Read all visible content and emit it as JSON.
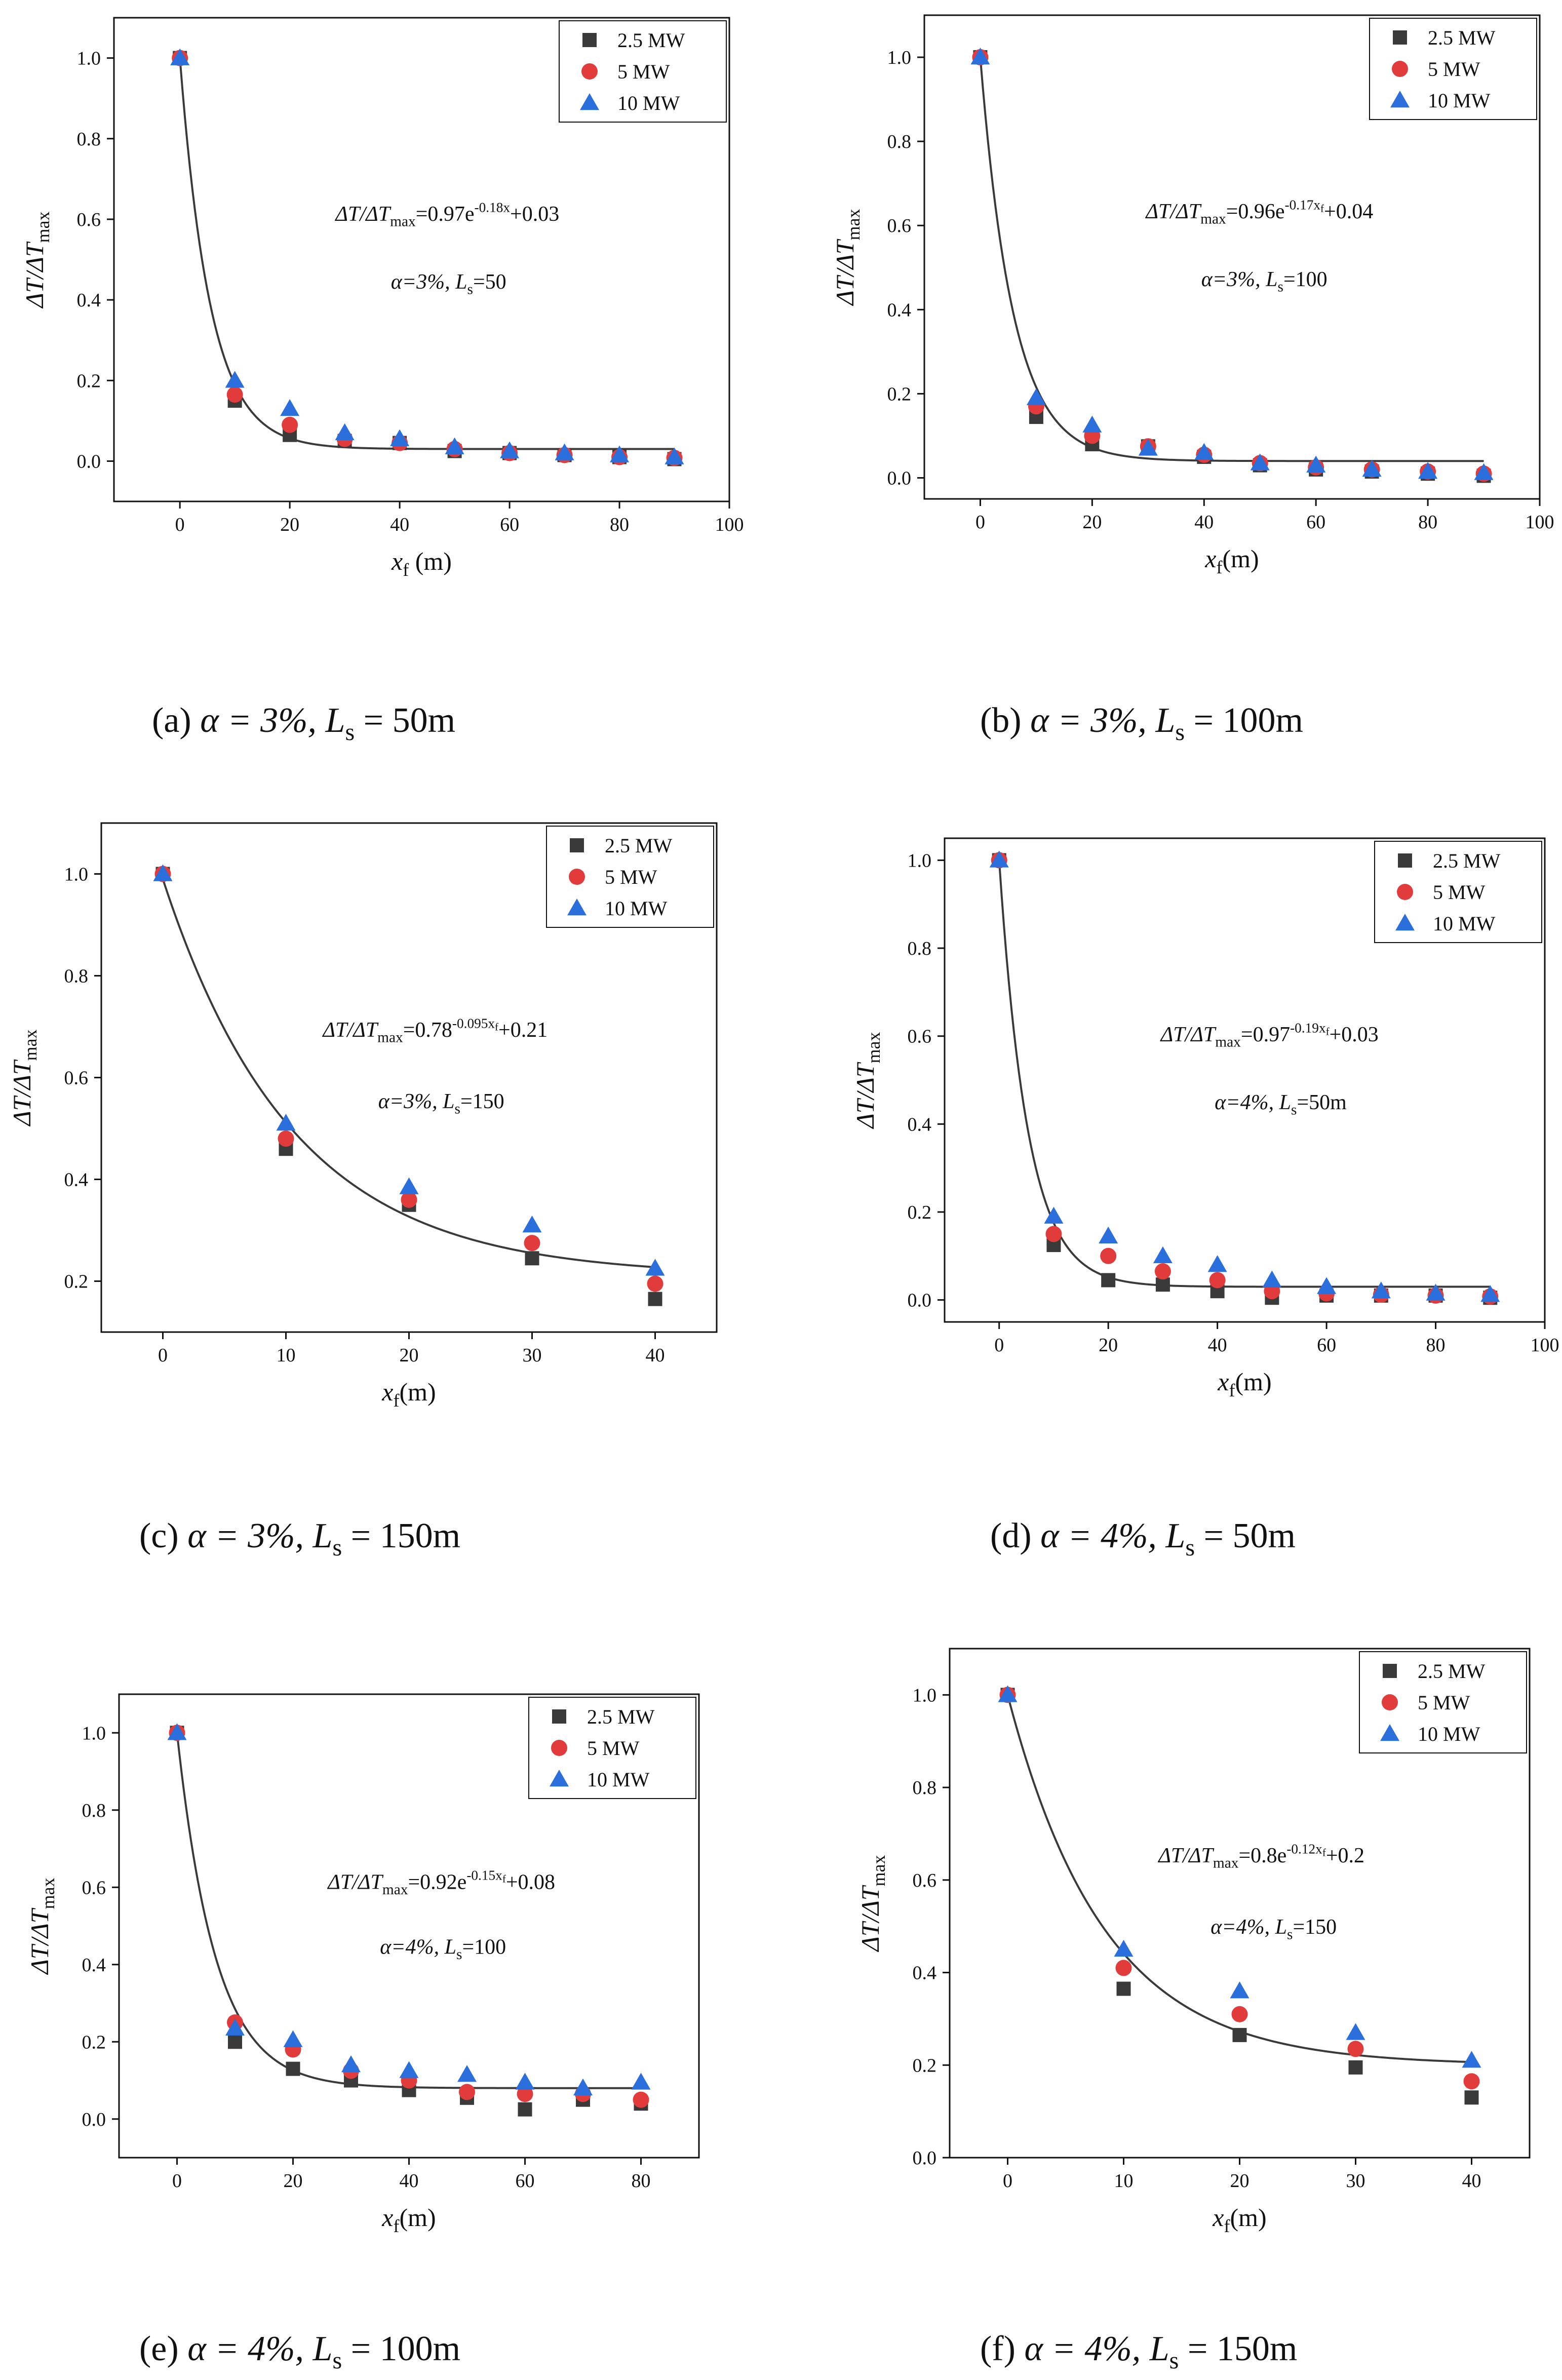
{
  "legend_labels": [
    "2.5 MW",
    "5 MW",
    "10 MW"
  ],
  "series_colors": {
    "2.5 MW": "#3a3a3a",
    "5 MW": "#e23b3b",
    "10 MW": "#2a6fdb"
  },
  "series_markers": {
    "2.5 MW": "square",
    "5 MW": "circle",
    "10 MW": "triangle"
  },
  "chart_data": [
    {
      "id": "a",
      "type": "scatter",
      "caption_prefix": "(a)",
      "caption_expr": "α = 3%, L",
      "caption_sub": "s",
      "caption_tail": " = 50m",
      "ylabel": "ΔT/ΔT",
      "ylabel_sub": "max",
      "xlabel": "x",
      "xlabel_sub": "f",
      "xlabel_tail": " (m)",
      "xlim": [
        -12,
        100
      ],
      "ylim": [
        -0.1,
        1.1
      ],
      "xticks": [
        0,
        20,
        40,
        60,
        80,
        100
      ],
      "yticks": [
        0.0,
        0.2,
        0.4,
        0.6,
        0.8,
        1.0
      ],
      "ytick_decimals": 1,
      "equation_text": "ΔT/ΔT_max=0.97e^(-0.18x)+0.03",
      "params_text": "α=3%, L_s=50",
      "fit": {
        "a": 0.97,
        "b": 0.18,
        "c": 0.03,
        "x_end": 90
      },
      "x": [
        0,
        10,
        20,
        30,
        40,
        50,
        60,
        70,
        80,
        90
      ],
      "series": [
        {
          "name": "2.5 MW",
          "values": [
            1.0,
            0.15,
            0.065,
            0.05,
            0.045,
            0.025,
            0.02,
            0.015,
            0.01,
            0.005
          ]
        },
        {
          "name": "5 MW",
          "values": [
            1.0,
            0.165,
            0.09,
            0.055,
            0.045,
            0.03,
            0.02,
            0.015,
            0.01,
            0.008
          ]
        },
        {
          "name": "10 MW",
          "values": [
            1.0,
            0.2,
            0.13,
            0.07,
            0.055,
            0.035,
            0.025,
            0.02,
            0.015,
            0.01
          ]
        }
      ]
    },
    {
      "id": "b",
      "type": "scatter",
      "caption_prefix": "(b)",
      "caption_expr": "α = 3%, L",
      "caption_sub": "s",
      "caption_tail": " = 100m",
      "ylabel": "ΔT/ΔT",
      "ylabel_sub": "max",
      "xlabel": "x",
      "xlabel_sub": "f",
      "xlabel_tail": "(m)",
      "xlim": [
        -10,
        100
      ],
      "ylim": [
        -0.05,
        1.1
      ],
      "xticks": [
        0,
        20,
        40,
        60,
        80,
        100
      ],
      "yticks": [
        0.0,
        0.2,
        0.4,
        0.6,
        0.8,
        1.0
      ],
      "ytick_decimals": 1,
      "equation_text": "ΔT/ΔT_max=0.96e^(-0.17x_f)+0.04",
      "params_text": "α=3%, L_s=100",
      "fit": {
        "a": 0.96,
        "b": 0.17,
        "c": 0.04,
        "x_end": 90
      },
      "x": [
        0,
        10,
        20,
        30,
        40,
        50,
        60,
        70,
        80,
        90
      ],
      "series": [
        {
          "name": "2.5 MW",
          "values": [
            1.0,
            0.145,
            0.08,
            0.075,
            0.05,
            0.03,
            0.02,
            0.015,
            0.01,
            0.005
          ]
        },
        {
          "name": "5 MW",
          "values": [
            1.0,
            0.17,
            0.1,
            0.075,
            0.055,
            0.035,
            0.025,
            0.02,
            0.015,
            0.01
          ]
        },
        {
          "name": "10 MW",
          "values": [
            1.0,
            0.19,
            0.125,
            0.07,
            0.06,
            0.035,
            0.03,
            0.02,
            0.015,
            0.012
          ]
        }
      ]
    },
    {
      "id": "c",
      "type": "scatter",
      "caption_prefix": "(c)",
      "caption_expr": "α = 3%, L",
      "caption_sub": "s",
      "caption_tail": " = 150m",
      "ylabel": "ΔT/ΔT",
      "ylabel_sub": "max",
      "xlabel": "x",
      "xlabel_sub": "f",
      "xlabel_tail": "(m)",
      "xlim": [
        -5,
        45
      ],
      "ylim": [
        0.1,
        1.1
      ],
      "xticks": [
        0,
        10,
        20,
        30,
        40
      ],
      "yticks": [
        0.2,
        0.4,
        0.6,
        0.8,
        1.0
      ],
      "ytick_decimals": 1,
      "equation_text": "ΔT/ΔT_max=0.78^(-0.095x_f)+0.21",
      "params_text": "α=3%, L_s=150",
      "fit": {
        "a": 0.78,
        "b": 0.095,
        "c": 0.21,
        "x_end": 40
      },
      "x": [
        0,
        10,
        20,
        30,
        40
      ],
      "series": [
        {
          "name": "2.5 MW",
          "values": [
            1.0,
            0.46,
            0.35,
            0.245,
            0.165
          ]
        },
        {
          "name": "5 MW",
          "values": [
            1.0,
            0.48,
            0.36,
            0.275,
            0.195
          ]
        },
        {
          "name": "10 MW",
          "values": [
            1.0,
            0.51,
            0.385,
            0.31,
            0.225
          ]
        }
      ]
    },
    {
      "id": "d",
      "type": "scatter",
      "caption_prefix": "(d)",
      "caption_expr": "α = 4%, L",
      "caption_sub": "s",
      "caption_tail": " = 50m",
      "ylabel": "ΔT/ΔT",
      "ylabel_sub": "max",
      "xlabel": "x",
      "xlabel_sub": "f",
      "xlabel_tail": "(m)",
      "xlim": [
        -10,
        100
      ],
      "ylim": [
        -0.05,
        1.05
      ],
      "xticks": [
        0,
        20,
        40,
        60,
        80,
        100
      ],
      "yticks": [
        0.0,
        0.2,
        0.4,
        0.6,
        0.8,
        1.0
      ],
      "ytick_decimals": 1,
      "equation_text": "ΔT/ΔT_max=0.97^(-0.19x_f)+0.03",
      "params_text": "α=4%, L_s=50m",
      "fit": {
        "a": 0.97,
        "b": 0.19,
        "c": 0.03,
        "x_end": 90
      },
      "x": [
        0,
        10,
        20,
        30,
        40,
        50,
        60,
        70,
        80,
        90
      ],
      "series": [
        {
          "name": "2.5 MW",
          "values": [
            1.0,
            0.125,
            0.045,
            0.035,
            0.02,
            0.005,
            0.01,
            0.01,
            0.01,
            0.005
          ]
        },
        {
          "name": "5 MW",
          "values": [
            1.0,
            0.15,
            0.1,
            0.065,
            0.045,
            0.02,
            0.015,
            0.012,
            0.01,
            0.008
          ]
        },
        {
          "name": "10 MW",
          "values": [
            1.0,
            0.19,
            0.145,
            0.1,
            0.08,
            0.045,
            0.03,
            0.02,
            0.015,
            0.012
          ]
        }
      ]
    },
    {
      "id": "e",
      "type": "scatter",
      "caption_prefix": "(e)",
      "caption_expr": "α = 4%, L",
      "caption_sub": "s",
      "caption_tail": " = 100m",
      "ylabel": "ΔT/ΔT",
      "ylabel_sub": "max",
      "xlabel": "x",
      "xlabel_sub": "f",
      "xlabel_tail": "(m)",
      "xlim": [
        -10,
        90
      ],
      "ylim": [
        -0.1,
        1.1
      ],
      "xticks": [
        0,
        20,
        40,
        60,
        80
      ],
      "yticks": [
        0.0,
        0.2,
        0.4,
        0.6,
        0.8,
        1.0
      ],
      "ytick_decimals": 1,
      "equation_text": "ΔT/ΔT_max=0.92e^(-0.15x_f)+0.08",
      "params_text": "α=4%, L_s=100",
      "fit": {
        "a": 0.92,
        "b": 0.15,
        "c": 0.08,
        "x_end": 80
      },
      "x": [
        0,
        10,
        20,
        30,
        40,
        50,
        60,
        70,
        80
      ],
      "series": [
        {
          "name": "2.5 MW",
          "values": [
            1.0,
            0.2,
            0.13,
            0.1,
            0.075,
            0.055,
            0.025,
            0.05,
            0.04
          ]
        },
        {
          "name": "5 MW",
          "values": [
            1.0,
            0.25,
            0.18,
            0.125,
            0.1,
            0.07,
            0.065,
            0.065,
            0.05
          ]
        },
        {
          "name": "10 MW",
          "values": [
            1.0,
            0.235,
            0.205,
            0.14,
            0.125,
            0.115,
            0.095,
            0.08,
            0.095
          ]
        }
      ]
    },
    {
      "id": "f",
      "type": "scatter",
      "caption_prefix": "(f)",
      "caption_expr": "α = 4%, L",
      "caption_sub": "s",
      "caption_tail": " = 150m",
      "ylabel": "ΔT/ΔT",
      "ylabel_sub": "max",
      "xlabel": "x",
      "xlabel_sub": "f",
      "xlabel_tail": "(m)",
      "xlim": [
        -5,
        45
      ],
      "ylim": [
        0.0,
        1.1
      ],
      "xticks": [
        0,
        10,
        20,
        30,
        40
      ],
      "yticks": [
        0.0,
        0.2,
        0.4,
        0.6,
        0.8,
        1.0
      ],
      "ytick_decimals": 1,
      "equation_text": "ΔT/ΔT_max=0.8e^(-0.12x_f)+0.2",
      "params_text": "α=4%, L_s=150",
      "fit": {
        "a": 0.8,
        "b": 0.12,
        "c": 0.2,
        "x_end": 40
      },
      "x": [
        0,
        10,
        20,
        30,
        40
      ],
      "series": [
        {
          "name": "2.5 MW",
          "values": [
            1.0,
            0.365,
            0.265,
            0.195,
            0.13
          ]
        },
        {
          "name": "5 MW",
          "values": [
            1.0,
            0.41,
            0.31,
            0.235,
            0.165
          ]
        },
        {
          "name": "10 MW",
          "values": [
            1.0,
            0.45,
            0.36,
            0.27,
            0.21
          ]
        }
      ]
    }
  ]
}
